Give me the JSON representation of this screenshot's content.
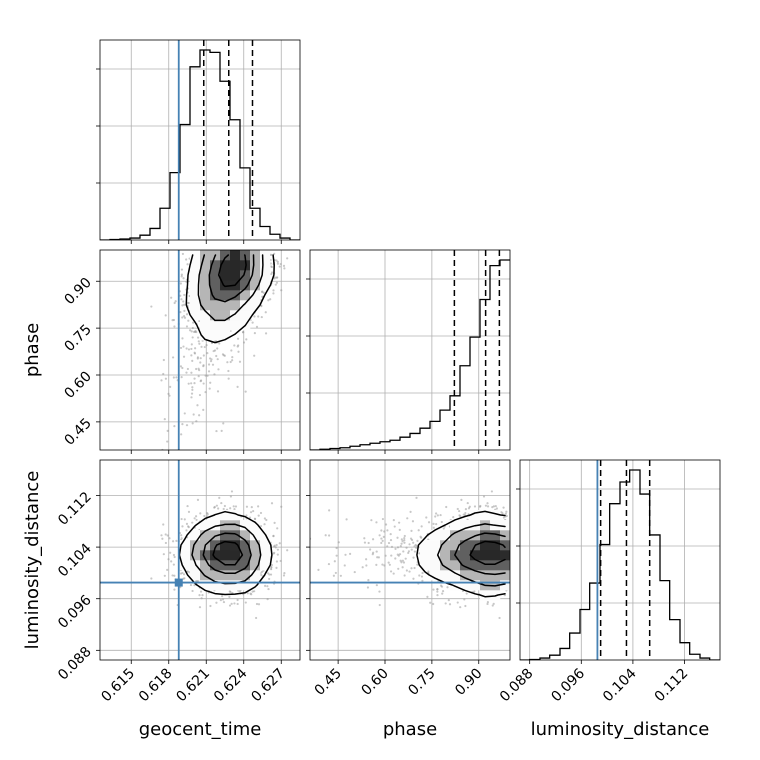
{
  "chart_data": {
    "type": "corner",
    "parameters": [
      "geocent_time",
      "phase",
      "luminosity_distance"
    ],
    "xlabels": [
      "geocent_time",
      "phase",
      "luminosity_distance"
    ],
    "ylabels": [
      "",
      "phase",
      "luminosity_distance"
    ],
    "ranges": {
      "geocent_time": [
        0.6125,
        0.6285
      ],
      "phase": [
        0.36,
        1.0
      ],
      "luminosity_distance": [
        0.0865,
        0.1175
      ]
    },
    "ticks": {
      "geocent_time": [
        0.615,
        0.618,
        0.621,
        0.624,
        0.627
      ],
      "phase": [
        0.45,
        0.6,
        0.75,
        0.9
      ],
      "luminosity_distance": [
        0.088,
        0.096,
        0.104,
        0.112
      ]
    },
    "tick_labels": {
      "geocent_time": [
        "0.615",
        "0.618",
        "0.621",
        "0.624",
        "0.627"
      ],
      "phase": [
        "0.45",
        "0.60",
        "0.75",
        "0.90"
      ],
      "luminosity_distance": [
        "0.088",
        "0.096",
        "0.104",
        "0.112"
      ]
    },
    "truths": {
      "geocent_time": 0.6188,
      "phase": null,
      "luminosity_distance": 0.0985
    },
    "quantiles": {
      "geocent_time": [
        0.6208,
        0.6228,
        0.6247
      ],
      "phase": [
        0.822,
        0.922,
        0.966
      ],
      "luminosity_distance": [
        0.099,
        0.103,
        0.1066
      ]
    },
    "histograms": {
      "geocent_time": {
        "edges": [
          0.6125,
          0.6133,
          0.6141,
          0.6149,
          0.6157,
          0.6165,
          0.6173,
          0.6181,
          0.6189,
          0.6197,
          0.6205,
          0.6213,
          0.6221,
          0.6229,
          0.6237,
          0.6245,
          0.6253,
          0.6261,
          0.6269,
          0.6277,
          0.6285
        ],
        "counts": [
          0,
          1,
          2,
          4,
          10,
          24,
          66,
          140,
          240,
          360,
          395,
          390,
          330,
          250,
          150,
          66,
          28,
          12,
          4,
          0
        ]
      },
      "phase": {
        "edges": [
          0.36,
          0.392,
          0.424,
          0.456,
          0.488,
          0.52,
          0.552,
          0.584,
          0.616,
          0.648,
          0.68,
          0.712,
          0.744,
          0.776,
          0.808,
          0.84,
          0.872,
          0.904,
          0.936,
          0.968,
          1.0
        ],
        "counts": [
          0,
          2,
          4,
          6,
          10,
          14,
          18,
          22,
          26,
          34,
          44,
          58,
          76,
          106,
          144,
          224,
          300,
          400,
          490,
          505
        ]
      },
      "luminosity_distance": {
        "edges": [
          0.0865,
          0.088,
          0.0896,
          0.0911,
          0.0927,
          0.0942,
          0.0958,
          0.0973,
          0.0989,
          0.1004,
          0.102,
          0.1035,
          0.1051,
          0.1066,
          0.1082,
          0.1097,
          0.1113,
          0.1128,
          0.1144,
          0.1159,
          0.1175
        ],
        "counts": [
          0,
          1,
          4,
          10,
          24,
          56,
          105,
          160,
          240,
          325,
          370,
          395,
          345,
          260,
          165,
          84,
          36,
          12,
          4,
          0
        ]
      }
    },
    "posterior": {
      "geocent_time": {
        "mean": 0.6228,
        "sd": 0.0015
      },
      "phase": {
        "mode": 0.99,
        "sd": 0.12,
        "upper": 1.0
      },
      "luminosity_distance": {
        "mean": 0.103,
        "sd": 0.0029
      }
    },
    "grid": true
  }
}
